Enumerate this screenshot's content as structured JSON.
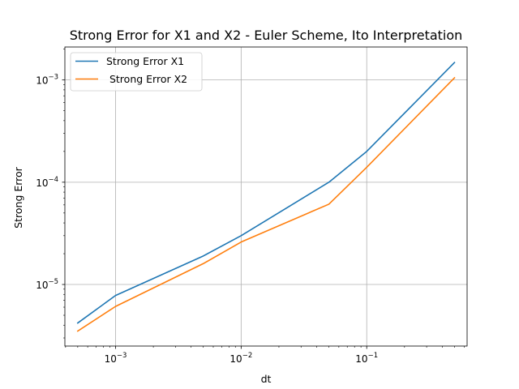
{
  "chart_data": {
    "type": "line",
    "title": "Strong Error for X1 and X2 - Euler Scheme, Ito Interpretation",
    "xlabel": "dt",
    "ylabel": "Strong Error",
    "xscale": "log",
    "yscale": "log",
    "grid": true,
    "legend_position": "top-left",
    "xlim": [
      0.000395,
      0.63
    ],
    "ylim": [
      2.5e-06,
      0.0021
    ],
    "x_major_ticks": [
      {
        "value": 0.001,
        "base": "10",
        "exp": "−3"
      },
      {
        "value": 0.01,
        "base": "10",
        "exp": "−2"
      },
      {
        "value": 0.1,
        "base": "10",
        "exp": "−1"
      }
    ],
    "y_major_ticks": [
      {
        "value": 1e-05,
        "base": "10",
        "exp": "−5"
      },
      {
        "value": 0.0001,
        "base": "10",
        "exp": "−4"
      },
      {
        "value": 0.001,
        "base": "10",
        "exp": "−3"
      }
    ],
    "series": [
      {
        "name": "Strong Error X1",
        "color": "#1f77b4",
        "x": [
          0.0005,
          0.001,
          0.005,
          0.01,
          0.05,
          0.1,
          0.5
        ],
        "y": [
          4.2e-06,
          7.8e-06,
          1.9e-05,
          3e-05,
          0.0001,
          0.0002,
          0.00148
        ]
      },
      {
        "name": " Strong Error X2",
        "color": "#ff7f0e",
        "x": [
          0.0005,
          0.001,
          0.005,
          0.01,
          0.05,
          0.1,
          0.5
        ],
        "y": [
          3.5e-06,
          6.1e-06,
          1.6e-05,
          2.6e-05,
          6.1e-05,
          0.00014,
          0.00105
        ]
      }
    ]
  }
}
